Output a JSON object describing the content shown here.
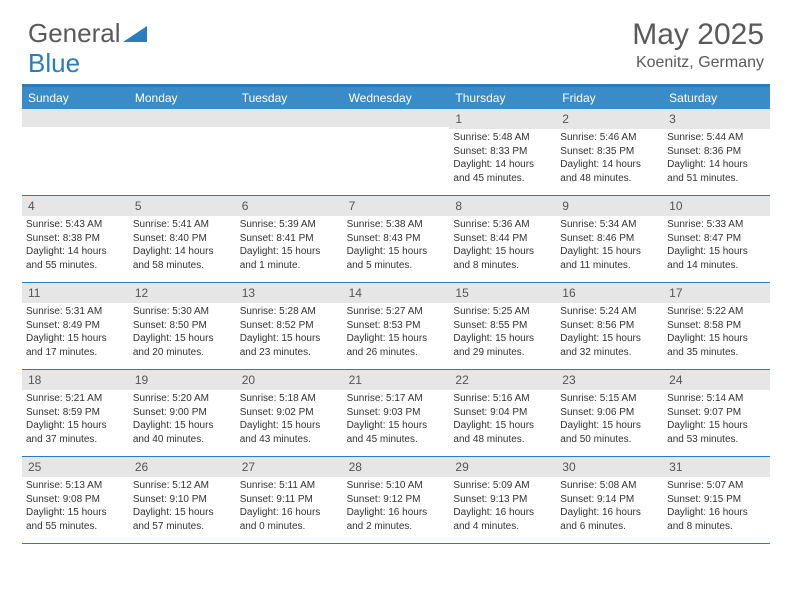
{
  "brand": {
    "part1": "General",
    "part2": "Blue"
  },
  "title": {
    "month": "May 2025",
    "location": "Koenitz, Germany"
  },
  "weekdays": [
    "Sunday",
    "Monday",
    "Tuesday",
    "Wednesday",
    "Thursday",
    "Friday",
    "Saturday"
  ],
  "colors": {
    "header_bar": "#3a8cc9",
    "border": "#2b7bbf",
    "daynum_bg": "#e6e6e6",
    "text": "#333333",
    "muted": "#5a5a5a"
  },
  "weeks": [
    [
      {
        "n": "",
        "sr": "",
        "ss": "",
        "dl": ""
      },
      {
        "n": "",
        "sr": "",
        "ss": "",
        "dl": ""
      },
      {
        "n": "",
        "sr": "",
        "ss": "",
        "dl": ""
      },
      {
        "n": "",
        "sr": "",
        "ss": "",
        "dl": ""
      },
      {
        "n": "1",
        "sr": "Sunrise: 5:48 AM",
        "ss": "Sunset: 8:33 PM",
        "dl": "Daylight: 14 hours and 45 minutes."
      },
      {
        "n": "2",
        "sr": "Sunrise: 5:46 AM",
        "ss": "Sunset: 8:35 PM",
        "dl": "Daylight: 14 hours and 48 minutes."
      },
      {
        "n": "3",
        "sr": "Sunrise: 5:44 AM",
        "ss": "Sunset: 8:36 PM",
        "dl": "Daylight: 14 hours and 51 minutes."
      }
    ],
    [
      {
        "n": "4",
        "sr": "Sunrise: 5:43 AM",
        "ss": "Sunset: 8:38 PM",
        "dl": "Daylight: 14 hours and 55 minutes."
      },
      {
        "n": "5",
        "sr": "Sunrise: 5:41 AM",
        "ss": "Sunset: 8:40 PM",
        "dl": "Daylight: 14 hours and 58 minutes."
      },
      {
        "n": "6",
        "sr": "Sunrise: 5:39 AM",
        "ss": "Sunset: 8:41 PM",
        "dl": "Daylight: 15 hours and 1 minute."
      },
      {
        "n": "7",
        "sr": "Sunrise: 5:38 AM",
        "ss": "Sunset: 8:43 PM",
        "dl": "Daylight: 15 hours and 5 minutes."
      },
      {
        "n": "8",
        "sr": "Sunrise: 5:36 AM",
        "ss": "Sunset: 8:44 PM",
        "dl": "Daylight: 15 hours and 8 minutes."
      },
      {
        "n": "9",
        "sr": "Sunrise: 5:34 AM",
        "ss": "Sunset: 8:46 PM",
        "dl": "Daylight: 15 hours and 11 minutes."
      },
      {
        "n": "10",
        "sr": "Sunrise: 5:33 AM",
        "ss": "Sunset: 8:47 PM",
        "dl": "Daylight: 15 hours and 14 minutes."
      }
    ],
    [
      {
        "n": "11",
        "sr": "Sunrise: 5:31 AM",
        "ss": "Sunset: 8:49 PM",
        "dl": "Daylight: 15 hours and 17 minutes."
      },
      {
        "n": "12",
        "sr": "Sunrise: 5:30 AM",
        "ss": "Sunset: 8:50 PM",
        "dl": "Daylight: 15 hours and 20 minutes."
      },
      {
        "n": "13",
        "sr": "Sunrise: 5:28 AM",
        "ss": "Sunset: 8:52 PM",
        "dl": "Daylight: 15 hours and 23 minutes."
      },
      {
        "n": "14",
        "sr": "Sunrise: 5:27 AM",
        "ss": "Sunset: 8:53 PM",
        "dl": "Daylight: 15 hours and 26 minutes."
      },
      {
        "n": "15",
        "sr": "Sunrise: 5:25 AM",
        "ss": "Sunset: 8:55 PM",
        "dl": "Daylight: 15 hours and 29 minutes."
      },
      {
        "n": "16",
        "sr": "Sunrise: 5:24 AM",
        "ss": "Sunset: 8:56 PM",
        "dl": "Daylight: 15 hours and 32 minutes."
      },
      {
        "n": "17",
        "sr": "Sunrise: 5:22 AM",
        "ss": "Sunset: 8:58 PM",
        "dl": "Daylight: 15 hours and 35 minutes."
      }
    ],
    [
      {
        "n": "18",
        "sr": "Sunrise: 5:21 AM",
        "ss": "Sunset: 8:59 PM",
        "dl": "Daylight: 15 hours and 37 minutes."
      },
      {
        "n": "19",
        "sr": "Sunrise: 5:20 AM",
        "ss": "Sunset: 9:00 PM",
        "dl": "Daylight: 15 hours and 40 minutes."
      },
      {
        "n": "20",
        "sr": "Sunrise: 5:18 AM",
        "ss": "Sunset: 9:02 PM",
        "dl": "Daylight: 15 hours and 43 minutes."
      },
      {
        "n": "21",
        "sr": "Sunrise: 5:17 AM",
        "ss": "Sunset: 9:03 PM",
        "dl": "Daylight: 15 hours and 45 minutes."
      },
      {
        "n": "22",
        "sr": "Sunrise: 5:16 AM",
        "ss": "Sunset: 9:04 PM",
        "dl": "Daylight: 15 hours and 48 minutes."
      },
      {
        "n": "23",
        "sr": "Sunrise: 5:15 AM",
        "ss": "Sunset: 9:06 PM",
        "dl": "Daylight: 15 hours and 50 minutes."
      },
      {
        "n": "24",
        "sr": "Sunrise: 5:14 AM",
        "ss": "Sunset: 9:07 PM",
        "dl": "Daylight: 15 hours and 53 minutes."
      }
    ],
    [
      {
        "n": "25",
        "sr": "Sunrise: 5:13 AM",
        "ss": "Sunset: 9:08 PM",
        "dl": "Daylight: 15 hours and 55 minutes."
      },
      {
        "n": "26",
        "sr": "Sunrise: 5:12 AM",
        "ss": "Sunset: 9:10 PM",
        "dl": "Daylight: 15 hours and 57 minutes."
      },
      {
        "n": "27",
        "sr": "Sunrise: 5:11 AM",
        "ss": "Sunset: 9:11 PM",
        "dl": "Daylight: 16 hours and 0 minutes."
      },
      {
        "n": "28",
        "sr": "Sunrise: 5:10 AM",
        "ss": "Sunset: 9:12 PM",
        "dl": "Daylight: 16 hours and 2 minutes."
      },
      {
        "n": "29",
        "sr": "Sunrise: 5:09 AM",
        "ss": "Sunset: 9:13 PM",
        "dl": "Daylight: 16 hours and 4 minutes."
      },
      {
        "n": "30",
        "sr": "Sunrise: 5:08 AM",
        "ss": "Sunset: 9:14 PM",
        "dl": "Daylight: 16 hours and 6 minutes."
      },
      {
        "n": "31",
        "sr": "Sunrise: 5:07 AM",
        "ss": "Sunset: 9:15 PM",
        "dl": "Daylight: 16 hours and 8 minutes."
      }
    ]
  ]
}
